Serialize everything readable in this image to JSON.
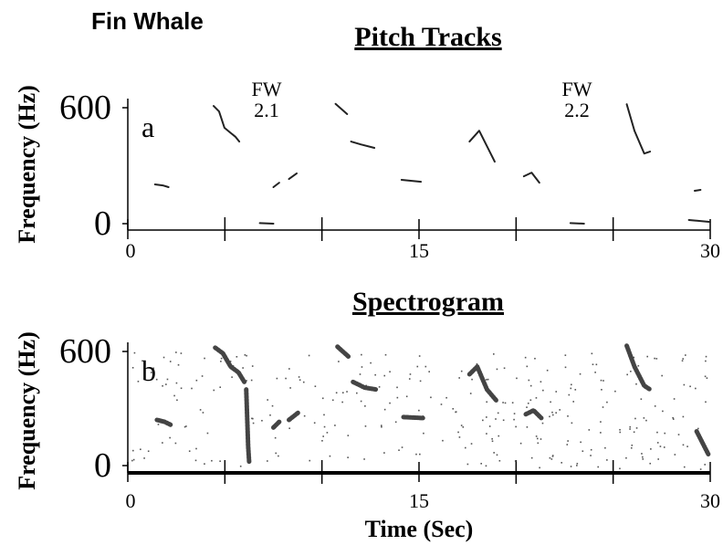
{
  "header": {
    "title": "Fin Whale"
  },
  "chart_data": [
    {
      "type": "line",
      "title": "Pitch Tracks",
      "ylabel": "Frequency (Hz)",
      "panel_label": "a",
      "annotations": [
        "FW",
        "2.1",
        "FW",
        "2.2"
      ],
      "xlim": [
        0,
        30
      ],
      "ylim": [
        0,
        600
      ],
      "xticks": [
        0,
        15,
        30
      ],
      "xminor": [
        5,
        10,
        20,
        25
      ],
      "yticks": [
        0,
        600
      ],
      "color": "#222222",
      "series": [
        {
          "x": [
            1.4,
            1.8,
            2.1
          ],
          "values": [
            203,
            198,
            189
          ]
        },
        {
          "x": [
            4.42,
            4.7,
            4.98,
            5.27,
            5.55,
            5.74
          ],
          "values": [
            609,
            581,
            496,
            472,
            449,
            425
          ]
        },
        {
          "x": [
            6.8,
            7.5
          ],
          "values": [
            3,
            0
          ]
        },
        {
          "x": [
            7.5,
            7.8
          ],
          "values": [
            189,
            212
          ]
        },
        {
          "x": [
            8.3,
            8.7
          ],
          "values": [
            231,
            260
          ]
        },
        {
          "x": [
            10.7,
            11.3
          ],
          "values": [
            620,
            567
          ]
        },
        {
          "x": [
            11.5,
            12.0,
            12.7
          ],
          "values": [
            425,
            410,
            392
          ]
        },
        {
          "x": [
            14.1,
            15.1
          ],
          "values": [
            227,
            217
          ]
        },
        {
          "x": [
            17.6,
            18.1,
            18.9
          ],
          "values": [
            425,
            481,
            321
          ]
        },
        {
          "x": [
            20.4,
            20.8,
            21.2
          ],
          "values": [
            245,
            264,
            212
          ]
        },
        {
          "x": [
            22.8,
            23.5
          ],
          "values": [
            3,
            0
          ]
        },
        {
          "x": [
            25.7,
            26.1,
            26.6,
            26.9
          ],
          "values": [
            618,
            480,
            363,
            373
          ]
        },
        {
          "x": [
            29.2,
            29.5
          ],
          "values": [
            170,
            175
          ]
        },
        {
          "x": [
            28.9,
            30.0
          ],
          "values": [
            19,
            9
          ]
        }
      ]
    },
    {
      "type": "scatter",
      "title": "Spectrogram",
      "ylabel": "Frequency (Hz)",
      "xlabel": "Time (Sec)",
      "panel_label": "b",
      "xlim": [
        0,
        30
      ],
      "ylim": [
        0,
        600
      ],
      "xticks": [
        0,
        15,
        30
      ],
      "xminor": [
        5,
        10,
        20,
        25
      ],
      "yticks": [
        0,
        600
      ],
      "color": "#444444",
      "series": [
        {
          "x": [
            1.5,
            1.9,
            2.2
          ],
          "values": [
            240,
            230,
            215
          ]
        },
        {
          "x": [
            4.5,
            4.9,
            5.3,
            5.7,
            6.0
          ],
          "values": [
            620,
            590,
            520,
            490,
            440
          ]
        },
        {
          "x": [
            6.1,
            6.15,
            6.2,
            6.25
          ],
          "values": [
            400,
            250,
            100,
            20
          ]
        },
        {
          "x": [
            7.5,
            7.8
          ],
          "values": [
            200,
            230
          ]
        },
        {
          "x": [
            8.3,
            8.8
          ],
          "values": [
            240,
            280
          ]
        },
        {
          "x": [
            10.8,
            11.4
          ],
          "values": [
            625,
            570
          ]
        },
        {
          "x": [
            11.6,
            12.2,
            12.8
          ],
          "values": [
            440,
            410,
            400
          ]
        },
        {
          "x": [
            14.2,
            15.2
          ],
          "values": [
            255,
            250
          ]
        },
        {
          "x": [
            17.6,
            18.0,
            18.5,
            19.0
          ],
          "values": [
            480,
            520,
            400,
            340
          ]
        },
        {
          "x": [
            20.5,
            20.9,
            21.3
          ],
          "values": [
            270,
            290,
            250
          ]
        },
        {
          "x": [
            25.7,
            26.1,
            26.6,
            26.9
          ],
          "values": [
            630,
            520,
            420,
            400
          ]
        },
        {
          "x": [
            29.3,
            29.6,
            29.9
          ],
          "values": [
            180,
            120,
            60
          ]
        }
      ]
    }
  ]
}
